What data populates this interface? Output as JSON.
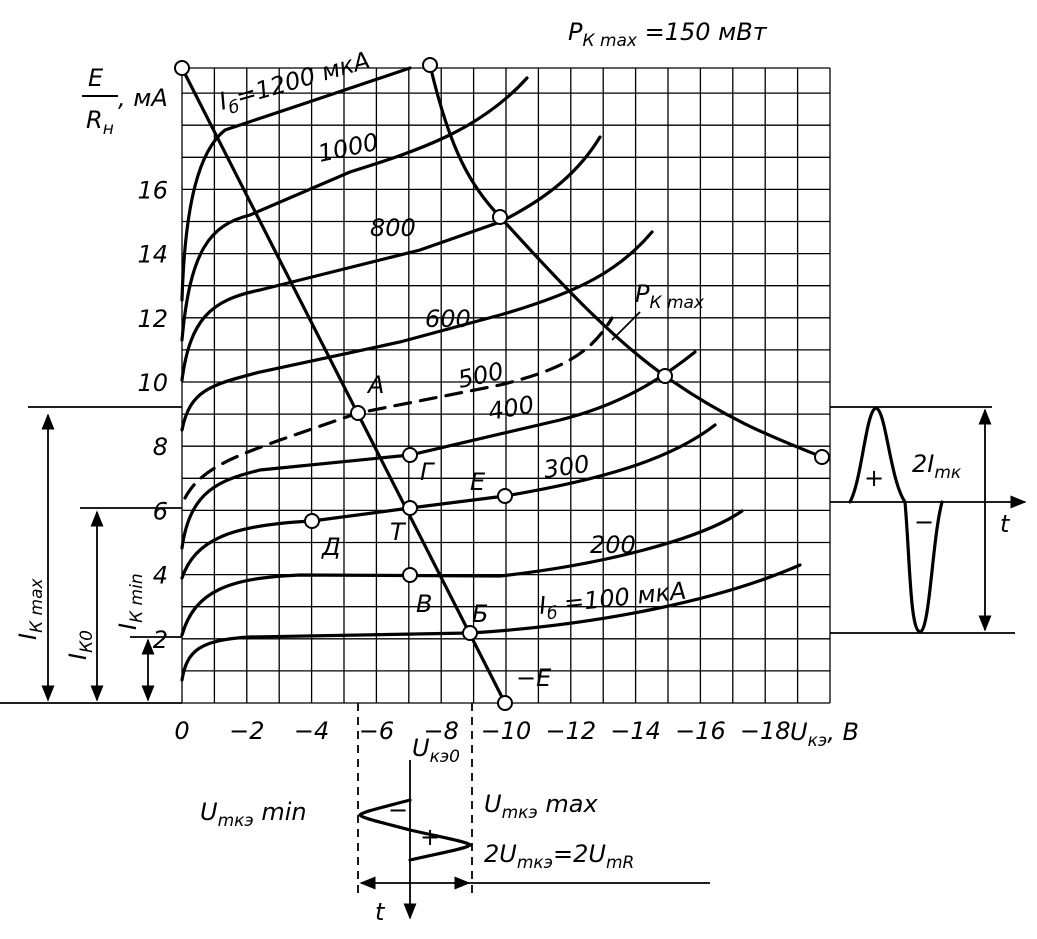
{
  "title": {
    "main": "P",
    "sub": "К max",
    "rest": " =150 мВт"
  },
  "y_axis_label": {
    "num": "E",
    "den": "R",
    "den_sub": "н",
    "unit": ", мА"
  },
  "x_axis_label": {
    "main": "U",
    "sub": "кэ",
    "rest": ", В"
  },
  "x_ticks": [
    "0",
    "−2",
    "−4",
    "−6",
    "−8",
    "−10",
    "−12",
    "−14",
    "−16",
    "−18"
  ],
  "y_ticks": [
    "2",
    "4",
    "6",
    "8",
    "10",
    "12",
    "14",
    "16"
  ],
  "curve_labels": {
    "top": {
      "main": "I",
      "sub": "б",
      "rest": "=1200 мкА"
    },
    "c1000": "1000",
    "c800": "800",
    "c600": "600",
    "c500": "500",
    "c400": "400",
    "c300": "300",
    "c200": "200",
    "bottom": {
      "main": "I",
      "sub": "б",
      "rest": " =100 мкА"
    }
  },
  "power_label": {
    "main": "P",
    "sub": "К max"
  },
  "points": {
    "a": "А",
    "g": "Г",
    "e": "Е",
    "d": "Д",
    "t": "Т",
    "v": "В",
    "b": "Б"
  },
  "neg_e": "−E",
  "left_labels": [
    {
      "main": "I",
      "sub": "К max"
    },
    {
      "main": "I",
      "sub": "К0"
    },
    {
      "main": "I",
      "sub": "К min"
    }
  ],
  "right": {
    "plus": "+",
    "minus": "−",
    "amp_main": "2I",
    "amp_sub": "mк",
    "t": "t"
  },
  "bottom": {
    "u0_main": "U",
    "u0_sub": "кэ0",
    "min_main": "U",
    "min_sub": "mкэ",
    "min_rest": " min",
    "max_main": "U",
    "max_sub": "mкэ",
    "max_rest": " max",
    "sw_a": "2U",
    "sw_a_sub": "mкэ",
    "sw_b": "=2U",
    "sw_b_sub": "mR",
    "minus": "−",
    "plus": "+",
    "t": "t"
  }
}
